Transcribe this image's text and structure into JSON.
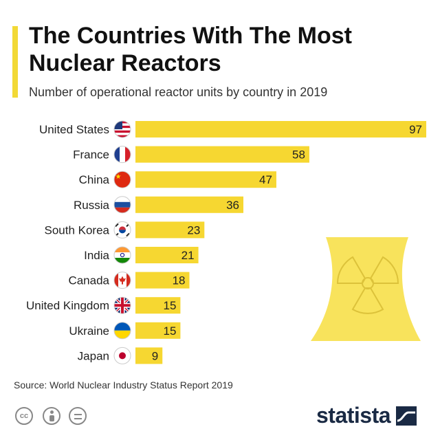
{
  "title": "The Countries With The Most Nuclear Reactors",
  "subtitle": "Number of operational reactor units by country in 2019",
  "source": "Source: World Nuclear Industry Status Report 2019",
  "brand": "statista",
  "colors": {
    "bar": "#f6d731",
    "accent": "#f2d936",
    "illustration": "#f8e35c"
  },
  "chart_data": {
    "type": "bar",
    "orientation": "horizontal",
    "title": "The Countries With The Most Nuclear Reactors",
    "subtitle": "Number of operational reactor units by country in 2019",
    "xlabel": "",
    "ylabel": "",
    "xlim": [
      0,
      97
    ],
    "categories": [
      "United States",
      "France",
      "China",
      "Russia",
      "South Korea",
      "India",
      "Canada",
      "United Kingdom",
      "Ukraine",
      "Japan"
    ],
    "values": [
      97,
      58,
      47,
      36,
      23,
      21,
      18,
      15,
      15,
      9
    ],
    "flags": [
      "us-flag-icon",
      "france-flag-icon",
      "china-flag-icon",
      "russia-flag-icon",
      "south-korea-flag-icon",
      "india-flag-icon",
      "canada-flag-icon",
      "uk-flag-icon",
      "ukraine-flag-icon",
      "japan-flag-icon"
    ]
  }
}
